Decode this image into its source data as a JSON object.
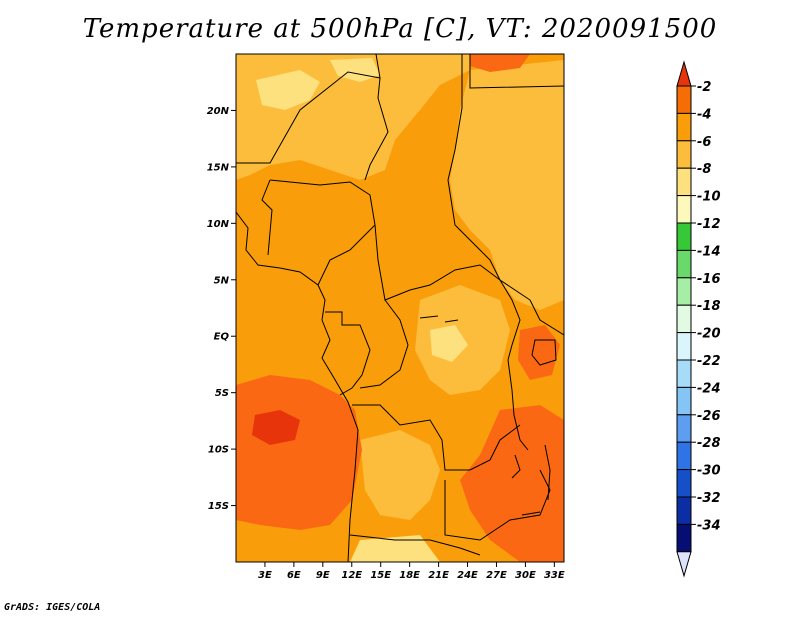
{
  "title": "Temperature at 500hPa [C], VT: 2020091500",
  "credit": "GrADS: IGES/COLA",
  "map": {
    "lat_range": [
      -20,
      25
    ],
    "lon_range": [
      0,
      34
    ],
    "lat_ticks": [
      {
        "value": 20,
        "label": "20N"
      },
      {
        "value": 15,
        "label": "15N"
      },
      {
        "value": 10,
        "label": "10N"
      },
      {
        "value": 5,
        "label": "5N"
      },
      {
        "value": 0,
        "label": "EQ"
      },
      {
        "value": -5,
        "label": "5S"
      },
      {
        "value": -10,
        "label": "10S"
      },
      {
        "value": -15,
        "label": "15S"
      }
    ],
    "lon_ticks": [
      {
        "value": 3,
        "label": "3E"
      },
      {
        "value": 6,
        "label": "6E"
      },
      {
        "value": 9,
        "label": "9E"
      },
      {
        "value": 12,
        "label": "12E"
      },
      {
        "value": 15,
        "label": "15E"
      },
      {
        "value": 18,
        "label": "18E"
      },
      {
        "value": 21,
        "label": "21E"
      },
      {
        "value": 24,
        "label": "24E"
      },
      {
        "value": 27,
        "label": "27E"
      },
      {
        "value": 30,
        "label": "30E"
      },
      {
        "value": 33,
        "label": "33E"
      }
    ]
  },
  "colorbar": {
    "levels": [
      "-2",
      "-4",
      "-6",
      "-8",
      "-10",
      "-12",
      "-14",
      "-16",
      "-18",
      "-20",
      "-22",
      "-24",
      "-26",
      "-28",
      "-30",
      "-32",
      "-34"
    ],
    "colors": [
      "#e8340a",
      "#f56e05",
      "#f99e0a",
      "#fdbd3c",
      "#fde17e",
      "#fdf8bc",
      "#37c837",
      "#69da69",
      "#a6eda6",
      "#e2fae2",
      "#dbf5fc",
      "#a6dcf7",
      "#84c5f5",
      "#5e9ef0",
      "#2e74e6",
      "#1650c8",
      "#0c2ea4",
      "#060e73"
    ],
    "top_arrow_color": "#e8340a",
    "bottom_arrow_color": "#dde3fb"
  },
  "field_colors": {
    "deep": "#fb6814",
    "mid": "#f99e0a",
    "light": "#fdbd3c",
    "pale": "#fde17e"
  }
}
